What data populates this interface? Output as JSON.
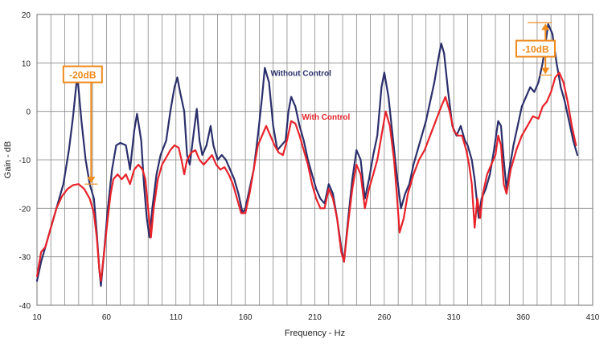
{
  "chart_data": {
    "type": "line",
    "title": "",
    "xlabel": "Frequency - Hz",
    "ylabel": "Gain - dB",
    "xlim": [
      10,
      410
    ],
    "ylim": [
      -40,
      20
    ],
    "xticks": [
      10,
      60,
      110,
      160,
      210,
      260,
      310,
      360,
      410
    ],
    "yticks": [
      -40,
      -30,
      -20,
      -10,
      0,
      10,
      20
    ],
    "x_minor_step": 10,
    "grid": true,
    "series": [
      {
        "name": "Without Control",
        "color": "#2b2f6b",
        "points": [
          [
            10,
            -35
          ],
          [
            13,
            -31
          ],
          [
            17,
            -27
          ],
          [
            21,
            -23
          ],
          [
            25,
            -19
          ],
          [
            29,
            -15
          ],
          [
            33,
            -8
          ],
          [
            36,
            -1
          ],
          [
            39,
            7.5
          ],
          [
            42,
            -2
          ],
          [
            45,
            -10
          ],
          [
            48,
            -15
          ],
          [
            51,
            -18
          ],
          [
            53,
            -25
          ],
          [
            55,
            -33
          ],
          [
            56,
            -36
          ],
          [
            58,
            -30
          ],
          [
            61,
            -20
          ],
          [
            64,
            -12
          ],
          [
            67,
            -7
          ],
          [
            70,
            -6.5
          ],
          [
            74,
            -7
          ],
          [
            77,
            -12
          ],
          [
            80,
            -4
          ],
          [
            82,
            -0.5
          ],
          [
            85,
            -6
          ],
          [
            87,
            -15
          ],
          [
            89,
            -22
          ],
          [
            91,
            -26
          ],
          [
            93,
            -20
          ],
          [
            96,
            -13
          ],
          [
            99,
            -9
          ],
          [
            103,
            -6
          ],
          [
            106,
            0
          ],
          [
            109,
            5
          ],
          [
            111,
            7
          ],
          [
            113,
            4
          ],
          [
            116,
            0
          ],
          [
            118,
            -9
          ],
          [
            120,
            -11
          ],
          [
            123,
            -4
          ],
          [
            125,
            0.5
          ],
          [
            127,
            -6
          ],
          [
            129,
            -9
          ],
          [
            132,
            -7
          ],
          [
            135,
            -3
          ],
          [
            137,
            -7
          ],
          [
            140,
            -10
          ],
          [
            143,
            -9
          ],
          [
            146,
            -10
          ],
          [
            149,
            -12
          ],
          [
            152,
            -14
          ],
          [
            155,
            -17
          ],
          [
            158,
            -21
          ],
          [
            160,
            -20
          ],
          [
            163,
            -16
          ],
          [
            166,
            -12
          ],
          [
            169,
            -5
          ],
          [
            172,
            3
          ],
          [
            174,
            9
          ],
          [
            177,
            6
          ],
          [
            180,
            -3
          ],
          [
            183,
            -8
          ],
          [
            186,
            -7
          ],
          [
            189,
            -6
          ],
          [
            191,
            0
          ],
          [
            193,
            3
          ],
          [
            196,
            1
          ],
          [
            199,
            -3
          ],
          [
            202,
            -6
          ],
          [
            205,
            -10
          ],
          [
            208,
            -13
          ],
          [
            211,
            -16
          ],
          [
            214,
            -18
          ],
          [
            217,
            -19
          ],
          [
            220,
            -15
          ],
          [
            223,
            -17
          ],
          [
            226,
            -22
          ],
          [
            229,
            -28
          ],
          [
            231,
            -31
          ],
          [
            234,
            -22
          ],
          [
            237,
            -14
          ],
          [
            240,
            -8
          ],
          [
            243,
            -10
          ],
          [
            246,
            -18
          ],
          [
            249,
            -14
          ],
          [
            252,
            -9
          ],
          [
            255,
            -5
          ],
          [
            258,
            5
          ],
          [
            260,
            8
          ],
          [
            263,
            3
          ],
          [
            266,
            -5
          ],
          [
            269,
            -13
          ],
          [
            272,
            -20
          ],
          [
            275,
            -17
          ],
          [
            278,
            -15
          ],
          [
            281,
            -11
          ],
          [
            284,
            -8
          ],
          [
            287,
            -5
          ],
          [
            290,
            -2
          ],
          [
            293,
            2
          ],
          [
            296,
            6
          ],
          [
            299,
            11
          ],
          [
            301,
            14
          ],
          [
            303,
            12
          ],
          [
            306,
            4
          ],
          [
            309,
            -3
          ],
          [
            312,
            -5
          ],
          [
            315,
            -3
          ],
          [
            318,
            -6
          ],
          [
            320,
            -7
          ],
          [
            323,
            -10
          ],
          [
            325,
            -14
          ],
          [
            328,
            -22
          ],
          [
            330,
            -18
          ],
          [
            333,
            -16
          ],
          [
            336,
            -13
          ],
          [
            339,
            -8
          ],
          [
            342,
            -2
          ],
          [
            344,
            -3
          ],
          [
            346,
            -10
          ],
          [
            348,
            -16
          ],
          [
            350,
            -12
          ],
          [
            353,
            -7
          ],
          [
            356,
            -3
          ],
          [
            359,
            1
          ],
          [
            362,
            3
          ],
          [
            365,
            5
          ],
          [
            368,
            4
          ],
          [
            371,
            6
          ],
          [
            374,
            10
          ],
          [
            376,
            14
          ],
          [
            378,
            18
          ],
          [
            381,
            16
          ],
          [
            384,
            10
          ],
          [
            387,
            5
          ],
          [
            390,
            2
          ],
          [
            393,
            -2
          ],
          [
            396,
            -6
          ],
          [
            399,
            -9
          ]
        ]
      },
      {
        "name": "With Control",
        "color": "#e8232a",
        "points": [
          [
            10,
            -34
          ],
          [
            13,
            -29
          ],
          [
            16,
            -28
          ],
          [
            20,
            -24
          ],
          [
            24,
            -20
          ],
          [
            28,
            -17.5
          ],
          [
            32,
            -16
          ],
          [
            36,
            -15.2
          ],
          [
            40,
            -15
          ],
          [
            44,
            -16
          ],
          [
            48,
            -18
          ],
          [
            51,
            -21
          ],
          [
            53,
            -26
          ],
          [
            55,
            -33
          ],
          [
            56,
            -35
          ],
          [
            58,
            -30
          ],
          [
            61,
            -22
          ],
          [
            63,
            -17
          ],
          [
            65,
            -14
          ],
          [
            68,
            -13
          ],
          [
            71,
            -14
          ],
          [
            74,
            -13
          ],
          [
            77,
            -15
          ],
          [
            80,
            -12
          ],
          [
            83,
            -11
          ],
          [
            86,
            -12
          ],
          [
            88,
            -14
          ],
          [
            90,
            -20
          ],
          [
            92,
            -26
          ],
          [
            94,
            -20
          ],
          [
            97,
            -14
          ],
          [
            100,
            -11
          ],
          [
            103,
            -9.5
          ],
          [
            106,
            -8
          ],
          [
            109,
            -7
          ],
          [
            112,
            -7.5
          ],
          [
            114,
            -10
          ],
          [
            116,
            -13
          ],
          [
            118,
            -10
          ],
          [
            121,
            -8.5
          ],
          [
            124,
            -8
          ],
          [
            127,
            -10
          ],
          [
            130,
            -11
          ],
          [
            133,
            -10
          ],
          [
            136,
            -9
          ],
          [
            139,
            -11
          ],
          [
            142,
            -12
          ],
          [
            145,
            -11.5
          ],
          [
            148,
            -13
          ],
          [
            151,
            -15
          ],
          [
            154,
            -18
          ],
          [
            157,
            -21
          ],
          [
            160,
            -21
          ],
          [
            163,
            -17
          ],
          [
            166,
            -12
          ],
          [
            169,
            -7
          ],
          [
            172,
            -5
          ],
          [
            175,
            -3
          ],
          [
            178,
            -5
          ],
          [
            181,
            -7
          ],
          [
            184,
            -8.5
          ],
          [
            187,
            -9
          ],
          [
            190,
            -6
          ],
          [
            193,
            -2
          ],
          [
            196,
            -2.5
          ],
          [
            199,
            -5
          ],
          [
            202,
            -8
          ],
          [
            205,
            -11
          ],
          [
            208,
            -15
          ],
          [
            211,
            -18
          ],
          [
            214,
            -20
          ],
          [
            217,
            -20
          ],
          [
            220,
            -16
          ],
          [
            223,
            -18
          ],
          [
            226,
            -22
          ],
          [
            229,
            -29
          ],
          [
            231,
            -31
          ],
          [
            234,
            -23
          ],
          [
            237,
            -16
          ],
          [
            240,
            -11
          ],
          [
            243,
            -13
          ],
          [
            246,
            -20
          ],
          [
            249,
            -16
          ],
          [
            252,
            -13
          ],
          [
            255,
            -10
          ],
          [
            258,
            -5
          ],
          [
            261,
            0
          ],
          [
            264,
            -3
          ],
          [
            267,
            -10
          ],
          [
            269,
            -17
          ],
          [
            271,
            -25
          ],
          [
            274,
            -22
          ],
          [
            277,
            -17
          ],
          [
            281,
            -13
          ],
          [
            285,
            -10
          ],
          [
            289,
            -8
          ],
          [
            293,
            -5
          ],
          [
            297,
            -2
          ],
          [
            301,
            1
          ],
          [
            304,
            3
          ],
          [
            307,
            0
          ],
          [
            310,
            -4
          ],
          [
            313,
            -5
          ],
          [
            316,
            -5
          ],
          [
            319,
            -8
          ],
          [
            321,
            -11
          ],
          [
            323,
            -15
          ],
          [
            325,
            -24
          ],
          [
            327,
            -18
          ],
          [
            329,
            -22
          ],
          [
            331,
            -17
          ],
          [
            334,
            -13
          ],
          [
            337,
            -11
          ],
          [
            340,
            -9
          ],
          [
            342,
            -5
          ],
          [
            344,
            -7
          ],
          [
            346,
            -15
          ],
          [
            348,
            -17
          ],
          [
            351,
            -12
          ],
          [
            355,
            -8
          ],
          [
            359,
            -5
          ],
          [
            363,
            -3
          ],
          [
            367,
            -1
          ],
          [
            371,
            -1.5
          ],
          [
            374,
            1
          ],
          [
            377,
            2
          ],
          [
            380,
            4
          ],
          [
            383,
            7
          ],
          [
            386,
            8
          ],
          [
            389,
            6
          ],
          [
            392,
            2
          ],
          [
            395,
            -3
          ],
          [
            398,
            -7
          ]
        ]
      }
    ],
    "annotations": [
      {
        "label": "Without Control",
        "x": 200,
        "y": 7.3,
        "color": "#2b2f6b"
      },
      {
        "label": "With Control",
        "x": 218,
        "y": -1.7,
        "color": "#e8232a"
      }
    ],
    "callouts": [
      {
        "label": "-20dB",
        "x": 49,
        "y_from": 7.5,
        "y_to": -15,
        "box_x": 29,
        "box_y": 9.3
      },
      {
        "label": "-10dB",
        "x": 376,
        "y_from": 18.3,
        "y_to": 7.5,
        "box_x": 355,
        "box_y": 14.6
      }
    ],
    "colors": {
      "callout": "#ef8a1c",
      "grid": "#888888",
      "axis": "#333333"
    }
  }
}
